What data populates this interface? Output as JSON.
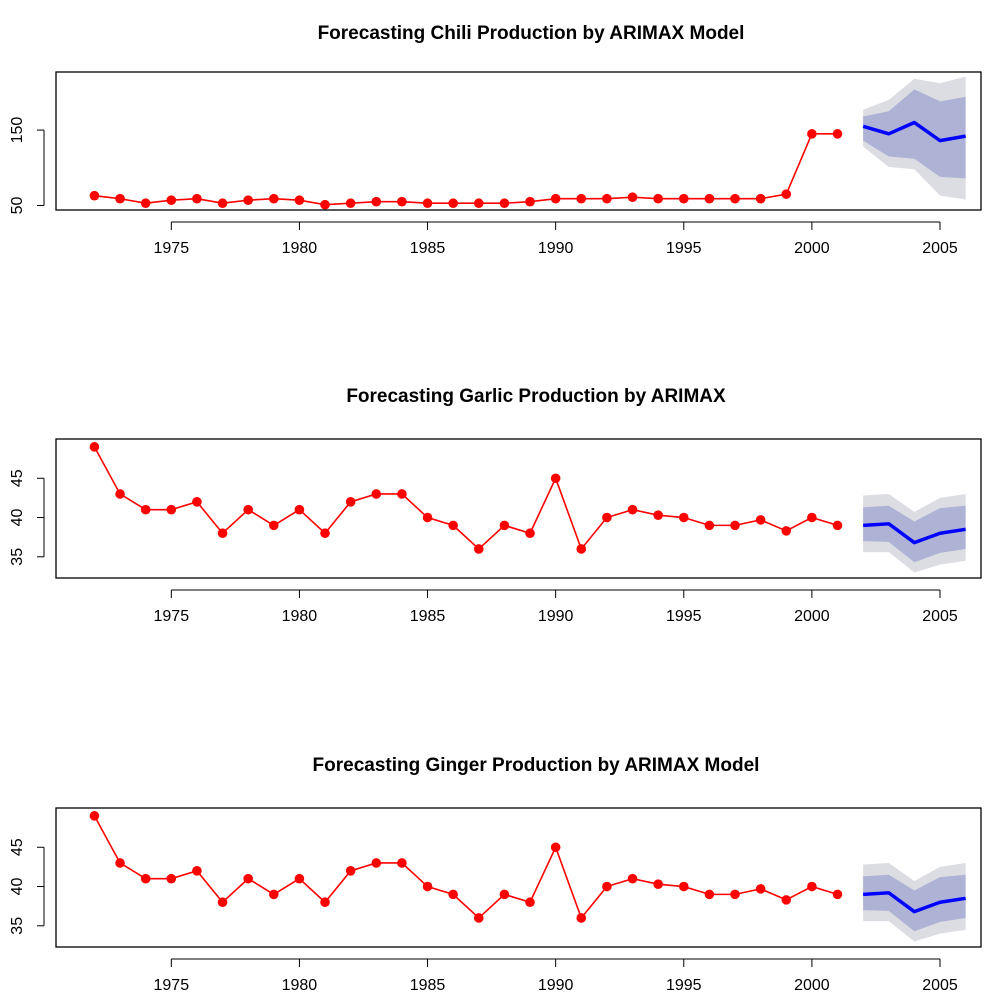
{
  "chart_data": [
    {
      "type": "line",
      "title": "Forecasting Chili Production by ARIMAX Model",
      "xlabel": "",
      "ylabel": "",
      "xlim": [
        1970.5,
        2006.6
      ],
      "ylim": [
        44,
        227
      ],
      "xticks": [
        1975,
        1980,
        1985,
        1990,
        1995,
        2000,
        2005
      ],
      "yticks": [
        50,
        150
      ],
      "grid": false,
      "colors": {
        "observed": "#ff0000",
        "forecast": "#0000ff",
        "band80": "#aeb3d6",
        "band95": "#dcdce3"
      },
      "observed": {
        "x": [
          1972,
          1973,
          1974,
          1975,
          1976,
          1977,
          1978,
          1979,
          1980,
          1981,
          1982,
          1983,
          1984,
          1985,
          1986,
          1987,
          1988,
          1989,
          1990,
          1991,
          1992,
          1993,
          1994,
          1995,
          1996,
          1997,
          1998,
          1999,
          2000,
          2001
        ],
        "y": [
          63,
          59,
          53,
          57,
          59,
          53,
          57,
          59,
          57,
          51,
          53,
          55,
          55,
          53,
          53,
          53,
          53,
          55,
          59,
          59,
          59,
          61,
          59,
          59,
          59,
          59,
          59,
          65,
          145,
          145
        ]
      },
      "forecast": {
        "x": [
          2002,
          2003,
          2004,
          2005,
          2006
        ],
        "mean": [
          155,
          145,
          160,
          136,
          142
        ],
        "lo80": [
          136,
          115,
          112,
          88,
          86
        ],
        "hi80": [
          168,
          175,
          204,
          188,
          194
        ],
        "lo95": [
          128,
          101,
          98,
          63,
          58
        ],
        "hi95": [
          177,
          190,
          218,
          212,
          221
        ]
      }
    },
    {
      "type": "line",
      "title": "Forecasting Garlic Production by ARIMAX",
      "xlabel": "",
      "ylabel": "",
      "xlim": [
        1970.5,
        2006.6
      ],
      "ylim": [
        32.3,
        50
      ],
      "xticks": [
        1975,
        1980,
        1985,
        1990,
        1995,
        2000,
        2005
      ],
      "yticks": [
        35,
        40,
        45
      ],
      "grid": false,
      "colors": {
        "observed": "#ff0000",
        "forecast": "#0000ff",
        "band80": "#aeb3d6",
        "band95": "#dcdce3"
      },
      "observed": {
        "x": [
          1972,
          1973,
          1974,
          1975,
          1976,
          1977,
          1978,
          1979,
          1980,
          1981,
          1982,
          1983,
          1984,
          1985,
          1986,
          1987,
          1988,
          1989,
          1990,
          1991,
          1992,
          1993,
          1994,
          1995,
          1996,
          1997,
          1998,
          1999,
          2000,
          2001
        ],
        "y": [
          49,
          43,
          41,
          41,
          42,
          38,
          41,
          39,
          41,
          38,
          42,
          43,
          43,
          40,
          39,
          36,
          39,
          38,
          45,
          36,
          40,
          41,
          40.3,
          40,
          39,
          39,
          39.7,
          38.3,
          40,
          39
        ]
      },
      "forecast": {
        "x": [
          2002,
          2003,
          2004,
          2005,
          2006
        ],
        "mean": [
          39,
          39.2,
          36.8,
          38,
          38.5
        ],
        "lo80": [
          37,
          36.9,
          34.3,
          35.5,
          36
        ],
        "hi80": [
          41.3,
          41.5,
          39.5,
          41.2,
          41.5
        ],
        "lo95": [
          35.6,
          35.6,
          33,
          34,
          34.5
        ],
        "hi95": [
          42.8,
          43,
          40.7,
          42.5,
          43
        ]
      }
    },
    {
      "type": "line",
      "title": "Forecasting Ginger Production by ARIMAX Model",
      "xlabel": "",
      "ylabel": "",
      "xlim": [
        1970.5,
        2006.6
      ],
      "ylim": [
        32.3,
        50
      ],
      "xticks": [
        1975,
        1980,
        1985,
        1990,
        1995,
        2000,
        2005
      ],
      "yticks": [
        35,
        40,
        45
      ],
      "grid": false,
      "colors": {
        "observed": "#ff0000",
        "forecast": "#0000ff",
        "band80": "#aeb3d6",
        "band95": "#dcdce3"
      },
      "observed": {
        "x": [
          1972,
          1973,
          1974,
          1975,
          1976,
          1977,
          1978,
          1979,
          1980,
          1981,
          1982,
          1983,
          1984,
          1985,
          1986,
          1987,
          1988,
          1989,
          1990,
          1991,
          1992,
          1993,
          1994,
          1995,
          1996,
          1997,
          1998,
          1999,
          2000,
          2001
        ],
        "y": [
          49,
          43,
          41,
          41,
          42,
          38,
          41,
          39,
          41,
          38,
          42,
          43,
          43,
          40,
          39,
          36,
          39,
          38,
          45,
          36,
          40,
          41,
          40.3,
          40,
          39,
          39,
          39.7,
          38.3,
          40,
          39
        ]
      },
      "forecast": {
        "x": [
          2002,
          2003,
          2004,
          2005,
          2006
        ],
        "mean": [
          39,
          39.2,
          36.8,
          38,
          38.5
        ],
        "lo80": [
          37,
          36.9,
          34.3,
          35.5,
          36
        ],
        "hi80": [
          41.3,
          41.5,
          39.5,
          41.2,
          41.5
        ],
        "lo95": [
          35.6,
          35.6,
          33,
          34,
          34.5
        ],
        "hi95": [
          42.8,
          43,
          40.7,
          42.5,
          43
        ]
      }
    }
  ]
}
